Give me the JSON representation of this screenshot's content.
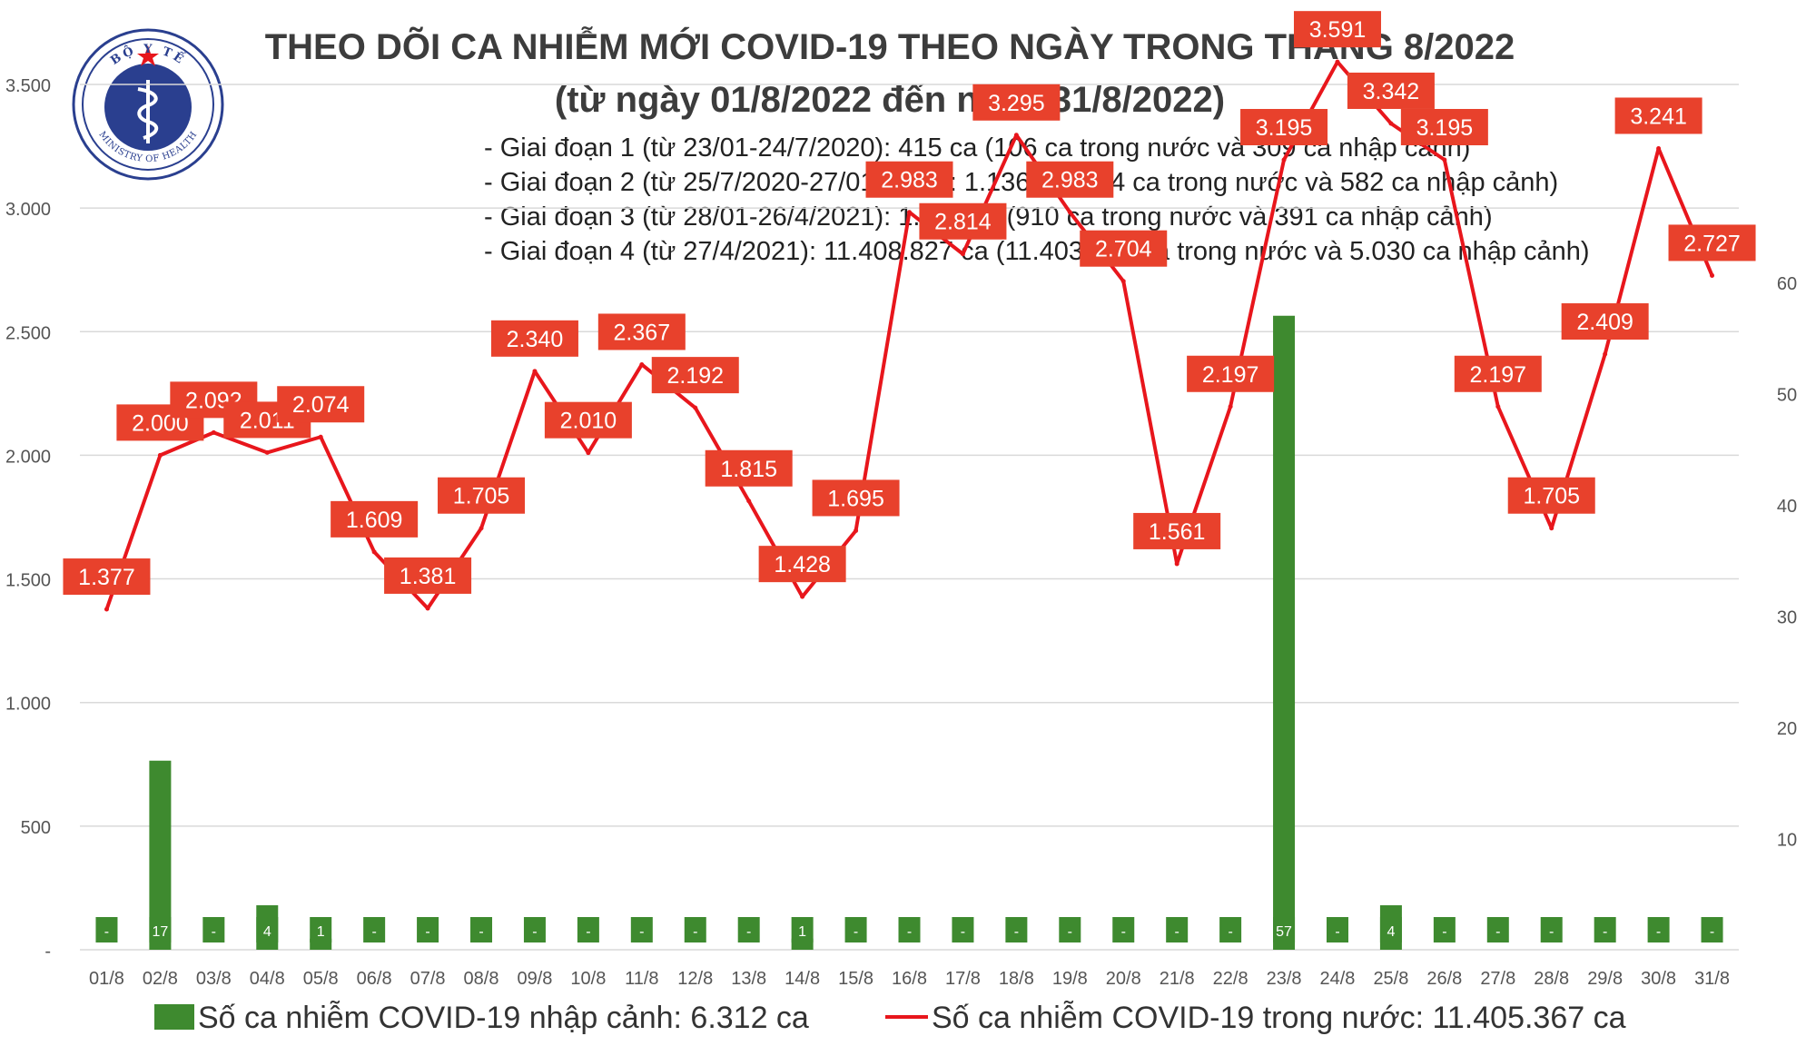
{
  "header": {
    "logo_text_top": "BỘ Y TẾ",
    "logo_text_bottom": "MINISTRY OF HEALTH",
    "title": "THEO DÕI CA NHIỄM MỚI COVID-19 THEO NGÀY TRONG THÁNG 8/2022",
    "subtitle": "(từ ngày 01/8/2022 đến ngày 31/8/2022)"
  },
  "stages": [
    "- Giai đoạn 1 (từ 23/01-24/7/2020): 415 ca (106 ca trong nước và 309 ca nhập cảnh)",
    "- Giai đoạn 2 (từ 25/7/2020-27/01/2021): 1.136 ca (554 ca trong nước và 582 ca nhập cảnh)",
    "- Giai đoạn 3 (từ 28/01-26/4/2021): 1.301 ca (910 ca trong nước và 391 ca nhập cảnh)",
    "- Giai đoạn 4 (từ 27/4/2021): 11.408.827 ca (11.403.797 ca trong nước và 5.030 ca nhập cảnh)"
  ],
  "colors": {
    "line": "#e8161c",
    "label_bg": "#e8412c",
    "bar": "#3e8a2f",
    "grid": "#d9d9d9",
    "axis_text": "#555555",
    "title": "#3c3c3c"
  },
  "chart_data": {
    "type": "bar+line",
    "categories": [
      "01/8",
      "02/8",
      "03/8",
      "04/8",
      "05/8",
      "06/8",
      "07/8",
      "08/8",
      "09/8",
      "10/8",
      "11/8",
      "12/8",
      "13/8",
      "14/8",
      "15/8",
      "16/8",
      "17/8",
      "18/8",
      "19/8",
      "20/8",
      "21/8",
      "22/8",
      "23/8",
      "24/8",
      "25/8",
      "26/8",
      "27/8",
      "28/8",
      "29/8",
      "30/8",
      "31/8"
    ],
    "series": [
      {
        "name": "Số ca nhiễm COVID-19 trong nước: 11.405.367 ca",
        "type": "line",
        "axis": "left",
        "values": [
          1377,
          2000,
          2092,
          2011,
          2074,
          1609,
          1381,
          1705,
          2340,
          2010,
          2367,
          2192,
          1815,
          1428,
          1695,
          2983,
          2814,
          3295,
          2983,
          2704,
          1561,
          2197,
          3195,
          3591,
          3342,
          3195,
          2197,
          1705,
          2409,
          3241,
          2727
        ],
        "labels": [
          "1.377",
          "2.000",
          "2.092",
          "2.011",
          "2.074",
          "1.609",
          "1.381",
          "1.705",
          "2.340",
          "2.010",
          "2.367",
          "2.192",
          "1.815",
          "1.428",
          "1.695",
          "2.983",
          "2.814",
          "3.295",
          "2.983",
          "2.704",
          "1.561",
          "2.197",
          "3.195",
          "3.591",
          "3.342",
          "3.195",
          "2.197",
          "1.705",
          "2.409",
          "3.241",
          "2.727"
        ]
      },
      {
        "name": "Số ca nhiễm COVID-19 nhập cảnh: 6.312 ca",
        "type": "bar",
        "axis": "right",
        "values": [
          0,
          17,
          0,
          4,
          1,
          0,
          0,
          0,
          0,
          0,
          0,
          0,
          0,
          1,
          0,
          0,
          0,
          0,
          0,
          0,
          0,
          0,
          57,
          0,
          4,
          0,
          0,
          0,
          0,
          0,
          0
        ],
        "labels": [
          "-",
          "17",
          "-",
          "4",
          "1",
          "-",
          "-",
          "-",
          "-",
          "-",
          "-",
          "-",
          "-",
          "1",
          "-",
          "-",
          "-",
          "-",
          "-",
          "-",
          "-",
          "-",
          "57",
          "-",
          "4",
          "-",
          "-",
          "-",
          "-",
          "-",
          "-"
        ]
      }
    ],
    "left_axis": {
      "ylim": [
        0,
        3500
      ],
      "ticks": [
        0,
        500,
        1000,
        1500,
        2000,
        2500,
        3000,
        3500
      ],
      "tick_labels": [
        "-",
        "500",
        "1.000",
        "1.500",
        "2.000",
        "2.500",
        "3.000",
        "3.500"
      ]
    },
    "right_axis": {
      "ylim": [
        0,
        60
      ],
      "ticks": [
        10,
        20,
        30,
        40,
        50,
        60
      ],
      "tick_labels": [
        "10",
        "20",
        "30",
        "40",
        "50",
        "60"
      ]
    },
    "grid": true,
    "legend_position": "bottom"
  }
}
